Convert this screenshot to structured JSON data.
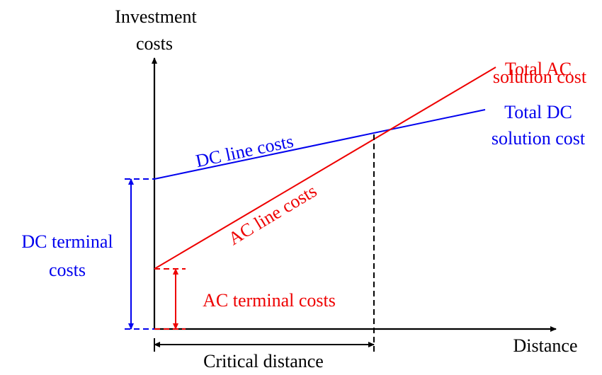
{
  "y_axis_label": [
    "Investment",
    "costs"
  ],
  "x_axis_label": "Distance",
  "critical_distance": "Critical distance",
  "total_ac": [
    "Total AC",
    "solution cost"
  ],
  "total_dc": [
    "Total DC",
    "solution cost"
  ],
  "dc_line_costs": "DC line costs",
  "ac_line_costs": "AC line costs",
  "dc_terminal_costs": [
    "DC terminal",
    "costs"
  ],
  "ac_terminal_costs": "AC terminal costs"
}
